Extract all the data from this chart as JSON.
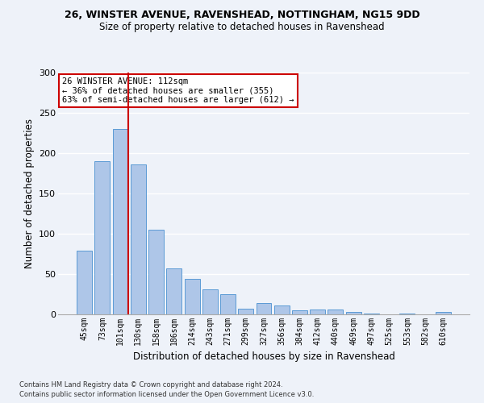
{
  "title1": "26, WINSTER AVENUE, RAVENSHEAD, NOTTINGHAM, NG15 9DD",
  "title2": "Size of property relative to detached houses in Ravenshead",
  "xlabel": "Distribution of detached houses by size in Ravenshead",
  "ylabel": "Number of detached properties",
  "categories": [
    "45sqm",
    "73sqm",
    "101sqm",
    "130sqm",
    "158sqm",
    "186sqm",
    "214sqm",
    "243sqm",
    "271sqm",
    "299sqm",
    "327sqm",
    "356sqm",
    "384sqm",
    "412sqm",
    "440sqm",
    "469sqm",
    "497sqm",
    "525sqm",
    "553sqm",
    "582sqm",
    "610sqm"
  ],
  "values": [
    79,
    190,
    230,
    186,
    105,
    57,
    44,
    31,
    25,
    7,
    14,
    11,
    5,
    6,
    6,
    3,
    1,
    0,
    1,
    0,
    3
  ],
  "bar_color": "#aec6e8",
  "bar_edge_color": "#5b9bd5",
  "vline_color": "#cc0000",
  "vline_bin_index": 2,
  "annotation_text": "26 WINSTER AVENUE: 112sqm\n← 36% of detached houses are smaller (355)\n63% of semi-detached houses are larger (612) →",
  "annotation_box_color": "#ffffff",
  "annotation_box_edge_color": "#cc0000",
  "ylim": [
    0,
    300
  ],
  "yticks": [
    0,
    50,
    100,
    150,
    200,
    250,
    300
  ],
  "footer1": "Contains HM Land Registry data © Crown copyright and database right 2024.",
  "footer2": "Contains public sector information licensed under the Open Government Licence v3.0.",
  "bg_color": "#eef2f9",
  "grid_color": "#ffffff"
}
